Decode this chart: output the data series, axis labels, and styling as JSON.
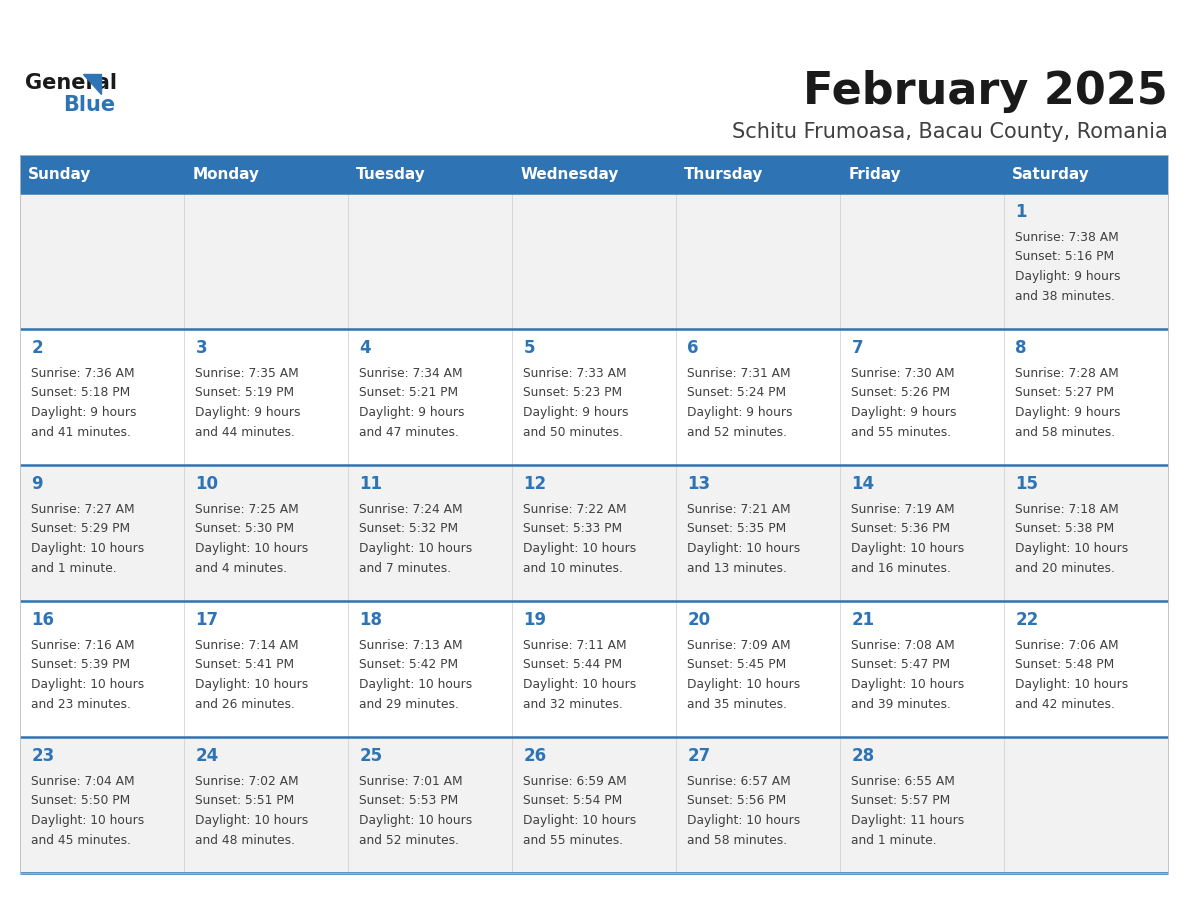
{
  "title": "February 2025",
  "subtitle": "Schitu Frumoasa, Bacau County, Romania",
  "header_bg": "#2E74B5",
  "header_text_color": "#FFFFFF",
  "days_of_week": [
    "Sunday",
    "Monday",
    "Tuesday",
    "Wednesday",
    "Thursday",
    "Friday",
    "Saturday"
  ],
  "row_bg_even": "#F2F2F2",
  "row_bg_odd": "#FFFFFF",
  "separator_color": "#2E74B5",
  "date_color": "#2E74B5",
  "text_color": "#404040",
  "calendar": [
    [
      null,
      null,
      null,
      null,
      null,
      null,
      {
        "day": 1,
        "sunrise": "7:38 AM",
        "sunset": "5:16 PM",
        "daylight_line1": "Daylight: 9 hours",
        "daylight_line2": "and 38 minutes."
      }
    ],
    [
      {
        "day": 2,
        "sunrise": "7:36 AM",
        "sunset": "5:18 PM",
        "daylight_line1": "Daylight: 9 hours",
        "daylight_line2": "and 41 minutes."
      },
      {
        "day": 3,
        "sunrise": "7:35 AM",
        "sunset": "5:19 PM",
        "daylight_line1": "Daylight: 9 hours",
        "daylight_line2": "and 44 minutes."
      },
      {
        "day": 4,
        "sunrise": "7:34 AM",
        "sunset": "5:21 PM",
        "daylight_line1": "Daylight: 9 hours",
        "daylight_line2": "and 47 minutes."
      },
      {
        "day": 5,
        "sunrise": "7:33 AM",
        "sunset": "5:23 PM",
        "daylight_line1": "Daylight: 9 hours",
        "daylight_line2": "and 50 minutes."
      },
      {
        "day": 6,
        "sunrise": "7:31 AM",
        "sunset": "5:24 PM",
        "daylight_line1": "Daylight: 9 hours",
        "daylight_line2": "and 52 minutes."
      },
      {
        "day": 7,
        "sunrise": "7:30 AM",
        "sunset": "5:26 PM",
        "daylight_line1": "Daylight: 9 hours",
        "daylight_line2": "and 55 minutes."
      },
      {
        "day": 8,
        "sunrise": "7:28 AM",
        "sunset": "5:27 PM",
        "daylight_line1": "Daylight: 9 hours",
        "daylight_line2": "and 58 minutes."
      }
    ],
    [
      {
        "day": 9,
        "sunrise": "7:27 AM",
        "sunset": "5:29 PM",
        "daylight_line1": "Daylight: 10 hours",
        "daylight_line2": "and 1 minute."
      },
      {
        "day": 10,
        "sunrise": "7:25 AM",
        "sunset": "5:30 PM",
        "daylight_line1": "Daylight: 10 hours",
        "daylight_line2": "and 4 minutes."
      },
      {
        "day": 11,
        "sunrise": "7:24 AM",
        "sunset": "5:32 PM",
        "daylight_line1": "Daylight: 10 hours",
        "daylight_line2": "and 7 minutes."
      },
      {
        "day": 12,
        "sunrise": "7:22 AM",
        "sunset": "5:33 PM",
        "daylight_line1": "Daylight: 10 hours",
        "daylight_line2": "and 10 minutes."
      },
      {
        "day": 13,
        "sunrise": "7:21 AM",
        "sunset": "5:35 PM",
        "daylight_line1": "Daylight: 10 hours",
        "daylight_line2": "and 13 minutes."
      },
      {
        "day": 14,
        "sunrise": "7:19 AM",
        "sunset": "5:36 PM",
        "daylight_line1": "Daylight: 10 hours",
        "daylight_line2": "and 16 minutes."
      },
      {
        "day": 15,
        "sunrise": "7:18 AM",
        "sunset": "5:38 PM",
        "daylight_line1": "Daylight: 10 hours",
        "daylight_line2": "and 20 minutes."
      }
    ],
    [
      {
        "day": 16,
        "sunrise": "7:16 AM",
        "sunset": "5:39 PM",
        "daylight_line1": "Daylight: 10 hours",
        "daylight_line2": "and 23 minutes."
      },
      {
        "day": 17,
        "sunrise": "7:14 AM",
        "sunset": "5:41 PM",
        "daylight_line1": "Daylight: 10 hours",
        "daylight_line2": "and 26 minutes."
      },
      {
        "day": 18,
        "sunrise": "7:13 AM",
        "sunset": "5:42 PM",
        "daylight_line1": "Daylight: 10 hours",
        "daylight_line2": "and 29 minutes."
      },
      {
        "day": 19,
        "sunrise": "7:11 AM",
        "sunset": "5:44 PM",
        "daylight_line1": "Daylight: 10 hours",
        "daylight_line2": "and 32 minutes."
      },
      {
        "day": 20,
        "sunrise": "7:09 AM",
        "sunset": "5:45 PM",
        "daylight_line1": "Daylight: 10 hours",
        "daylight_line2": "and 35 minutes."
      },
      {
        "day": 21,
        "sunrise": "7:08 AM",
        "sunset": "5:47 PM",
        "daylight_line1": "Daylight: 10 hours",
        "daylight_line2": "and 39 minutes."
      },
      {
        "day": 22,
        "sunrise": "7:06 AM",
        "sunset": "5:48 PM",
        "daylight_line1": "Daylight: 10 hours",
        "daylight_line2": "and 42 minutes."
      }
    ],
    [
      {
        "day": 23,
        "sunrise": "7:04 AM",
        "sunset": "5:50 PM",
        "daylight_line1": "Daylight: 10 hours",
        "daylight_line2": "and 45 minutes."
      },
      {
        "day": 24,
        "sunrise": "7:02 AM",
        "sunset": "5:51 PM",
        "daylight_line1": "Daylight: 10 hours",
        "daylight_line2": "and 48 minutes."
      },
      {
        "day": 25,
        "sunrise": "7:01 AM",
        "sunset": "5:53 PM",
        "daylight_line1": "Daylight: 10 hours",
        "daylight_line2": "and 52 minutes."
      },
      {
        "day": 26,
        "sunrise": "6:59 AM",
        "sunset": "5:54 PM",
        "daylight_line1": "Daylight: 10 hours",
        "daylight_line2": "and 55 minutes."
      },
      {
        "day": 27,
        "sunrise": "6:57 AM",
        "sunset": "5:56 PM",
        "daylight_line1": "Daylight: 10 hours",
        "daylight_line2": "and 58 minutes."
      },
      {
        "day": 28,
        "sunrise": "6:55 AM",
        "sunset": "5:57 PM",
        "daylight_line1": "Daylight: 11 hours",
        "daylight_line2": "and 1 minute."
      },
      null
    ]
  ]
}
